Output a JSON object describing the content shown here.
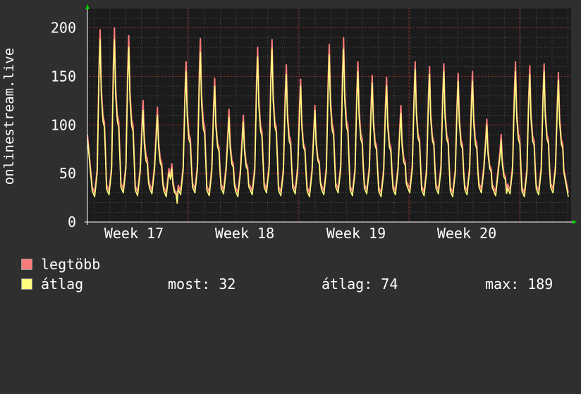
{
  "chart_data": {
    "type": "line",
    "ylabel": "onlinestream.live",
    "xlabel": "",
    "title": "",
    "ylim": [
      0,
      220
    ],
    "yticks": [
      0,
      50,
      100,
      150,
      200
    ],
    "ytick_labels": [
      "0",
      "50",
      "100",
      "150",
      "200"
    ],
    "x_categories": [
      "Week 17",
      "Week 18",
      "Week 19",
      "Week 20"
    ],
    "grid": true,
    "legend_position": "bottom-left",
    "series": [
      {
        "name": "legtöbb",
        "color": "#ff7b7b",
        "daily_peaks": [
          198,
          200,
          192,
          125,
          118,
          60,
          165,
          189,
          148,
          116,
          110,
          180,
          188,
          162,
          147,
          120,
          183,
          190,
          165,
          151,
          149,
          120,
          165,
          160,
          163,
          153,
          155,
          106,
          90,
          165,
          161,
          163,
          154
        ]
      },
      {
        "name": "átlag",
        "color": "#ffff80",
        "daily_peaks": [
          188,
          188,
          180,
          115,
          110,
          55,
          155,
          175,
          140,
          108,
          103,
          170,
          178,
          152,
          140,
          115,
          172,
          178,
          155,
          143,
          140,
          112,
          157,
          152,
          155,
          145,
          145,
          100,
          84,
          155,
          152,
          155,
          146
        ]
      }
    ]
  },
  "legend": {
    "items": [
      {
        "label": "legtöbb",
        "color": "#ff7b7b"
      },
      {
        "label": "átlag",
        "color": "#ffff80"
      }
    ],
    "stats": {
      "now_text": "most: 32",
      "avg_text": "átlag: 74",
      "max_text": "max: 189"
    }
  },
  "colors": {
    "background": "#2f2f2f",
    "plot_background": "#1b1b1b",
    "major_grid": "#a02f2f",
    "minor_grid": "#4a4a4a",
    "axis": "#ffffff",
    "arrow": "#00cc00"
  }
}
